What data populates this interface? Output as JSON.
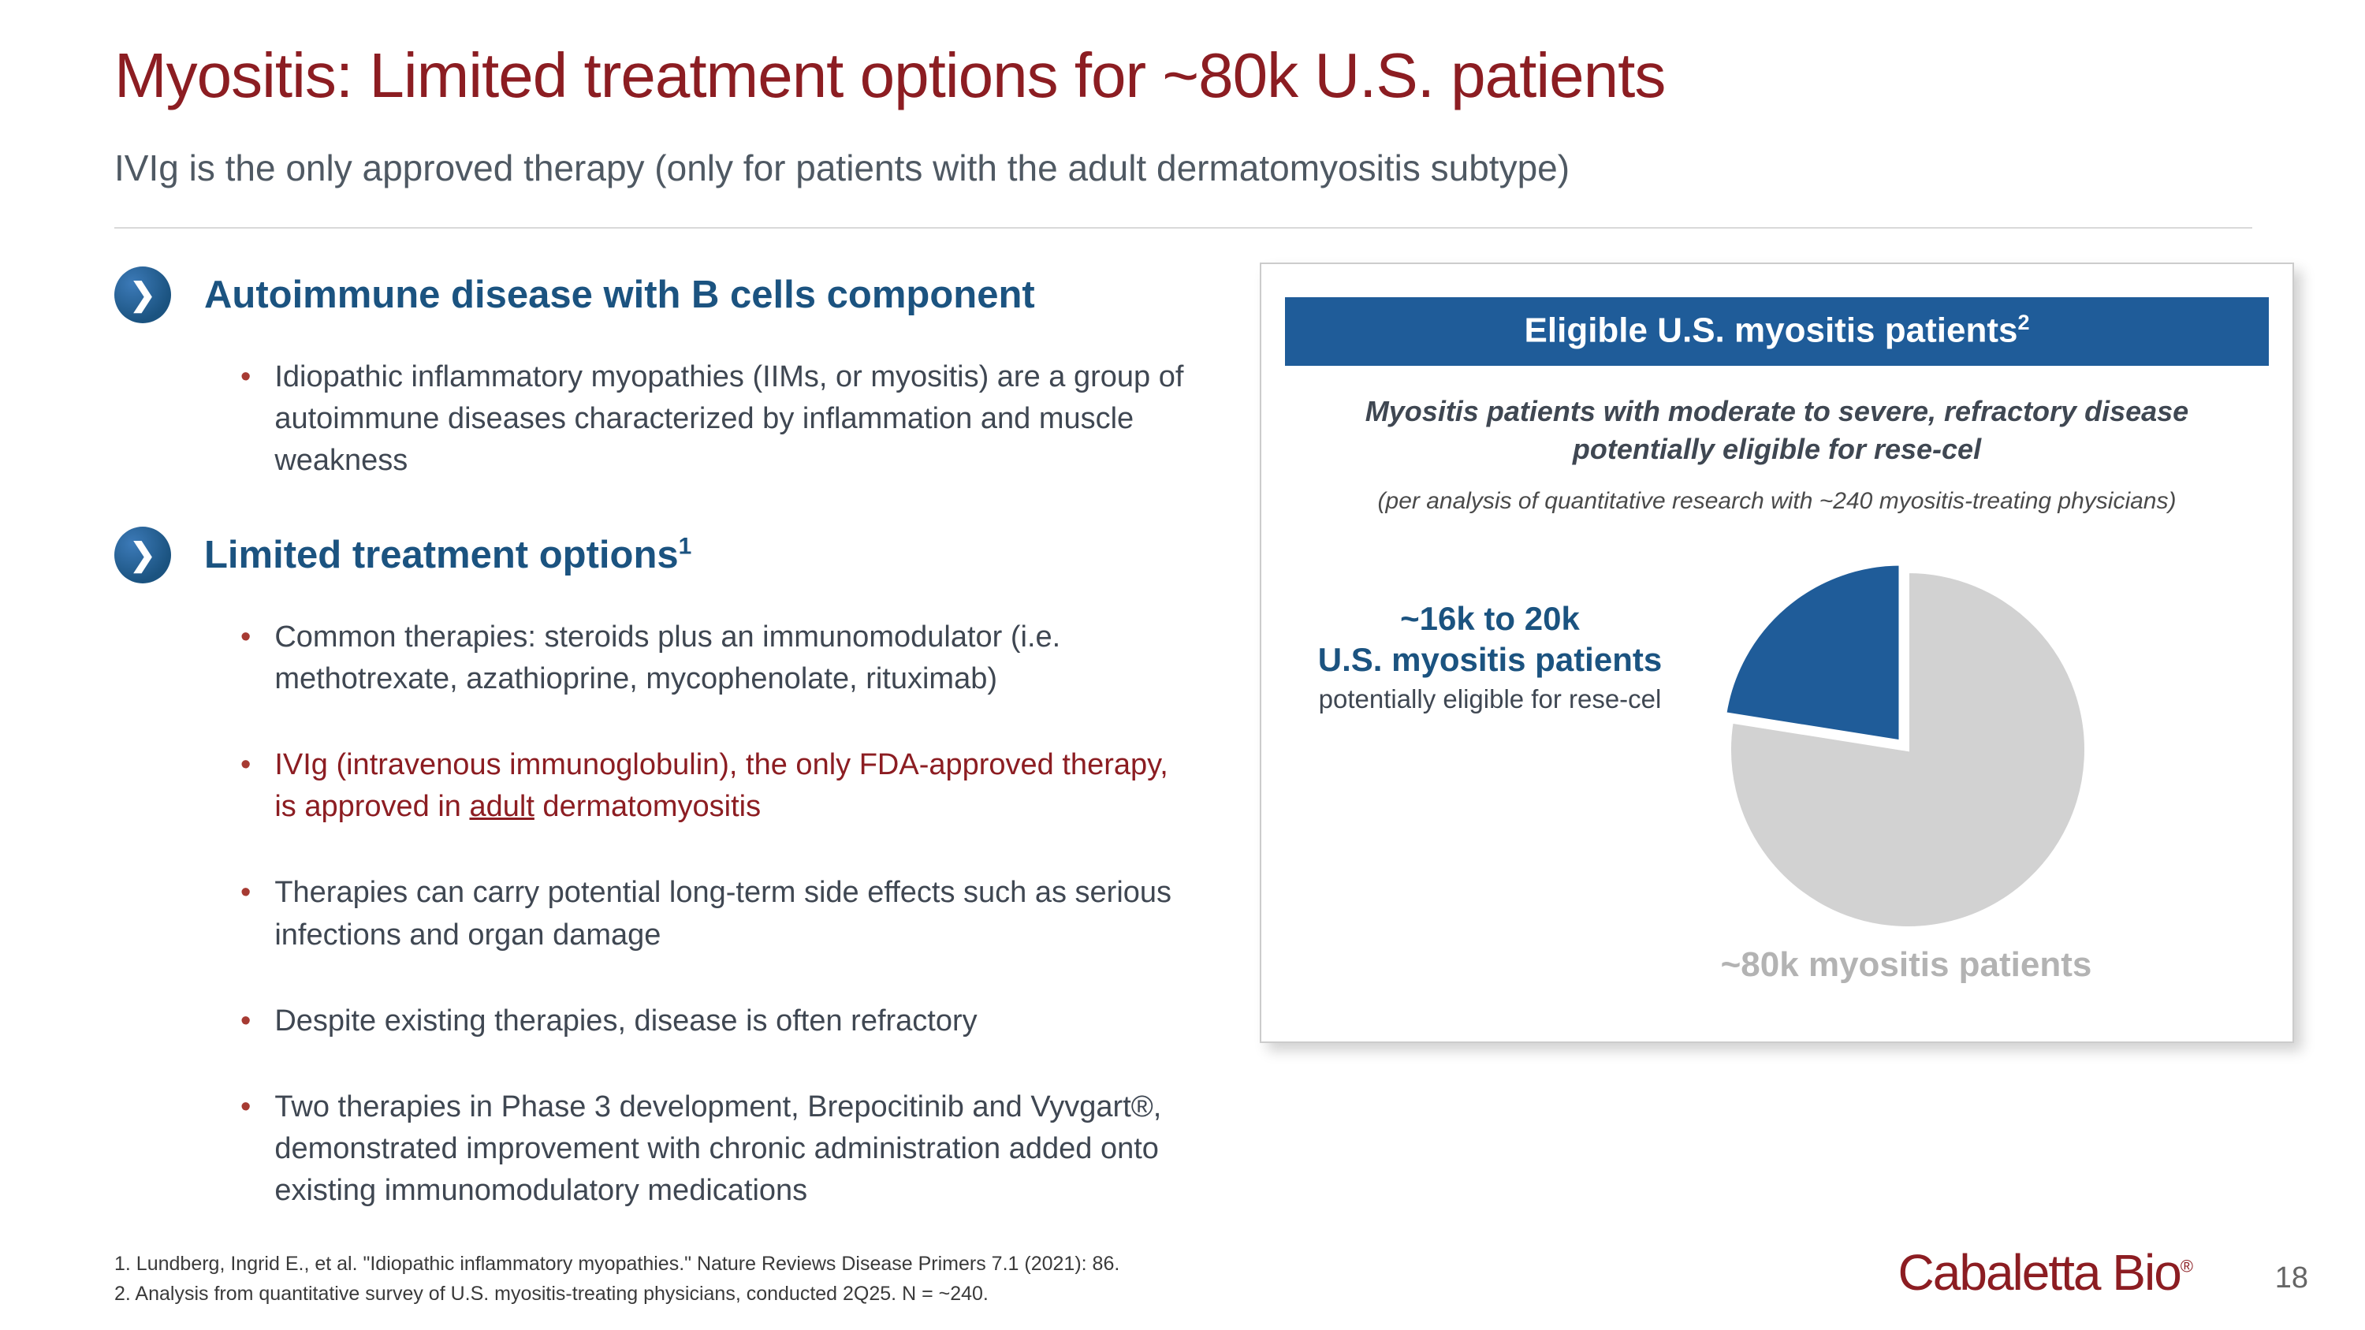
{
  "slide": {
    "title": "Myositis: Limited treatment options for ~80k U.S. patients",
    "subtitle": "IVIg is the only approved therapy (only for patients with the adult dermatomyositis subtype)",
    "page_number": "18",
    "logo_text": "Cabaletta Bio",
    "logo_reg_mark": "®",
    "chevron_glyph": "❯"
  },
  "left": {
    "section1": {
      "heading": "Autoimmune disease with B cells component",
      "bullets": [
        "Idiopathic inflammatory myopathies (IIMs, or myositis) are a group of autoimmune diseases characterized by inflammation and muscle weakness"
      ]
    },
    "section2": {
      "heading": "Limited treatment options",
      "heading_superscript": "1",
      "bullet1": "Common therapies: steroids plus an immunomodulator (i.e. methotrexate, azathioprine, mycophenolate, rituximab)",
      "bullet2_pre": "IVIg (intravenous immunoglobulin), the only FDA-approved therapy, is approved in ",
      "bullet2_underlined": "adult",
      "bullet2_post": " dermatomyositis",
      "bullet3": "Therapies can carry potential long-term side effects such as serious infections and organ damage",
      "bullet4": "Despite existing therapies, disease is often refractory",
      "bullet5": "Two therapies in Phase 3 development, Brepocitinib and Vyvgart®, demonstrated improvement with chronic administration added onto existing immunomodulatory medications"
    }
  },
  "card": {
    "header": "Eligible U.S. myositis patients",
    "header_superscript": "2",
    "subtitle": "Myositis patients with moderate to severe, refractory disease potentially eligible for rese-cel",
    "note": "(per analysis of quantitative research with ~240 myositis-treating physicians)",
    "eligible_label_line1": "~16k to 20k",
    "eligible_label_line2": "U.S. myositis patients",
    "eligible_label_line3": "potentially eligible for rese-cel",
    "total_label": "~80k myositis patients"
  },
  "chart_data": {
    "type": "pie",
    "title": "Eligible U.S. myositis patients",
    "slices": [
      {
        "label": "~16k to 20k U.S. myositis patients potentially eligible for rese-cel",
        "value": 18,
        "color": "#1f5c99"
      },
      {
        "label": "Remaining U.S. myositis patients",
        "value": 62,
        "color": "#d2d2d2"
      }
    ],
    "total": 80,
    "units": "thousands of U.S. patients",
    "total_label": "~80k myositis patients",
    "legend_position": "none"
  },
  "footnotes": [
    "1.  Lundberg, Ingrid E., et al. \"Idiopathic inflammatory myopathies.\" Nature Reviews Disease Primers 7.1 (2021): 86.",
    "2.  Analysis from quantitative survey of U.S. myositis-treating physicians, conducted 2Q25. N = ~240."
  ],
  "colors": {
    "title_red": "#8c1d22",
    "heading_blue": "#1b5380",
    "header_bar_blue": "#1f5c99",
    "pie_blue": "#1f5c99",
    "pie_gray": "#d2d2d2",
    "bullet_marker_red": "#a63a32",
    "body_text": "#3f4752",
    "total_label_gray": "#b3b3b3"
  }
}
